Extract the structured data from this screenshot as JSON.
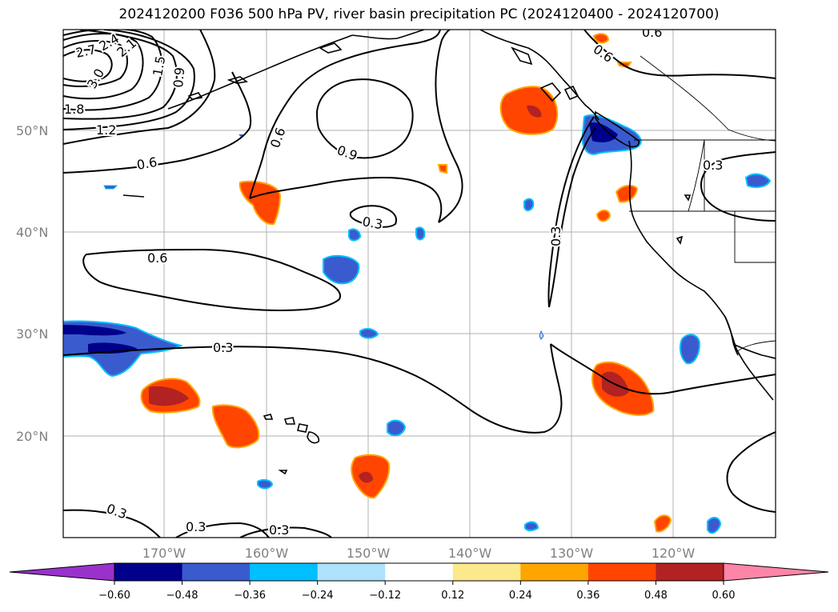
{
  "title": "2024120200 F036 500 hPa PV, river basin precipitation PC (2024120400 - 2024120700)",
  "map": {
    "lat_ticks": [
      "50°N",
      "40°N",
      "30°N",
      "20°N"
    ],
    "lon_ticks": [
      "170°W",
      "160°W",
      "150°W",
      "140°W",
      "130°W",
      "120°W"
    ],
    "pv_contour_labels": [
      "2.7",
      "2.4",
      "2.1",
      "1.5",
      "3.0",
      "0.9",
      "1.8",
      "1.2",
      "0.6",
      "0.6",
      "0.9",
      "0.3",
      "0.6",
      "0.3",
      "0.3",
      "0.3",
      "0.3",
      "0.6",
      "0.6",
      "0.3",
      "0.3"
    ]
  },
  "colorbar": {
    "ticks": [
      "−0.60",
      "−0.48",
      "−0.36",
      "−0.24",
      "−0.12",
      "0.12",
      "0.24",
      "0.36",
      "0.48",
      "0.60"
    ],
    "colors": [
      "#9932cc",
      "#00008b",
      "#3a5bcd",
      "#00bfff",
      "#aee2fa",
      "#ffffff",
      "#fce98c",
      "#ffa500",
      "#ff4500",
      "#b22222",
      "#ff85a8"
    ]
  },
  "colors": {
    "land": "#000000",
    "grid": "#b0b0b0",
    "contour": "#000000"
  }
}
